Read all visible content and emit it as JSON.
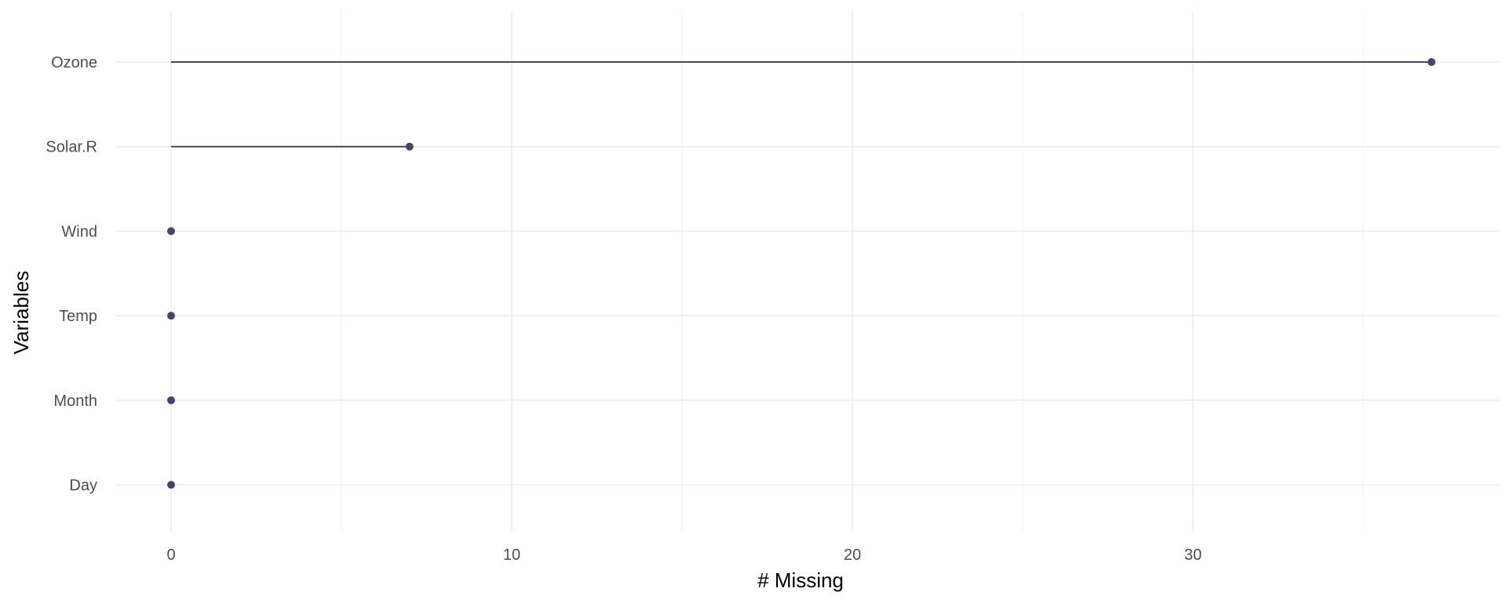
{
  "chart_data": {
    "type": "lollipop",
    "orientation": "horizontal",
    "categories": [
      "Ozone",
      "Solar.R",
      "Wind",
      "Temp",
      "Month",
      "Day"
    ],
    "values": [
      37,
      7,
      0,
      0,
      0,
      0
    ],
    "xlabel": "# Missing",
    "ylabel": "Variables",
    "xlim": [
      -1.6,
      38.8
    ],
    "xticks": [
      0,
      10,
      20,
      30
    ],
    "grid": true,
    "colors": {
      "mark": "#45456b",
      "grid": "#ebebeb"
    }
  }
}
